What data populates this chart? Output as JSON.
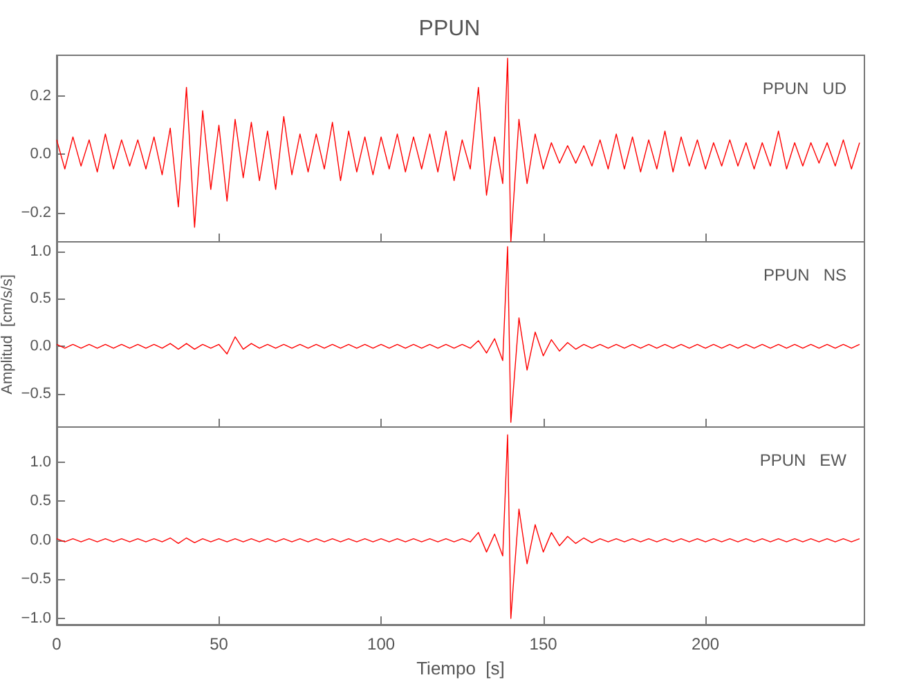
{
  "chart_data": [
    {
      "type": "line",
      "title": "PPUN",
      "annotations": [
        "PPUN   UD"
      ],
      "tick_labels": "y",
      "grid": false,
      "marker": "none",
      "x": [
        0,
        2.5,
        5,
        7.5,
        10,
        12.5,
        15,
        17.5,
        20,
        22.5,
        25,
        27.5,
        30,
        32.5,
        35,
        37.5,
        40,
        42.5,
        45,
        47.5,
        50,
        52.5,
        55,
        57.5,
        60,
        62.5,
        65,
        67.5,
        70,
        72.5,
        75,
        77.5,
        80,
        82.5,
        85,
        87.5,
        90,
        92.5,
        95,
        97.5,
        100,
        102.5,
        105,
        107.5,
        110,
        112.5,
        115,
        117.5,
        120,
        122.5,
        125,
        127.5,
        130,
        132.5,
        135,
        137.5,
        139,
        140,
        142.5,
        145,
        147.5,
        150,
        152.5,
        155,
        157.5,
        160,
        162.5,
        165,
        167.5,
        170,
        172.5,
        175,
        177.5,
        180,
        182.5,
        185,
        187.5,
        190,
        192.5,
        195,
        197.5,
        200,
        202.5,
        205,
        207.5,
        210,
        212.5,
        215,
        217.5,
        220,
        222.5,
        225,
        227.5,
        230,
        232.5,
        235,
        237.5,
        240,
        242.5,
        245,
        247.5
      ],
      "series": [
        {
          "color": "#ff0000",
          "values": [
            0.05,
            -0.05,
            0.06,
            -0.04,
            0.05,
            -0.06,
            0.07,
            -0.05,
            0.05,
            -0.04,
            0.05,
            -0.05,
            0.06,
            -0.07,
            0.09,
            -0.18,
            0.23,
            -0.25,
            0.15,
            -0.12,
            0.1,
            -0.16,
            0.12,
            -0.08,
            0.11,
            -0.09,
            0.08,
            -0.12,
            0.13,
            -0.07,
            0.07,
            -0.06,
            0.07,
            -0.05,
            0.11,
            -0.09,
            0.08,
            -0.06,
            0.06,
            -0.07,
            0.06,
            -0.05,
            0.07,
            -0.06,
            0.06,
            -0.05,
            0.07,
            -0.06,
            0.08,
            -0.09,
            0.05,
            -0.05,
            0.23,
            -0.14,
            0.06,
            -0.1,
            0.33,
            -0.3,
            0.12,
            -0.1,
            0.07,
            -0.05,
            0.04,
            -0.03,
            0.03,
            -0.03,
            0.03,
            -0.04,
            0.05,
            -0.05,
            0.07,
            -0.05,
            0.06,
            -0.06,
            0.05,
            -0.05,
            0.08,
            -0.06,
            0.06,
            -0.04,
            0.05,
            -0.05,
            0.04,
            -0.04,
            0.05,
            -0.04,
            0.04,
            -0.05,
            0.04,
            -0.04,
            0.08,
            -0.05,
            0.04,
            -0.04,
            0.04,
            -0.03,
            0.04,
            -0.04,
            0.05,
            -0.05,
            0.04
          ]
        }
      ],
      "xlim": [
        0,
        249
      ],
      "xticks": [
        0,
        50,
        100,
        150,
        200
      ],
      "ylim": [
        -0.3,
        0.34
      ],
      "yticks": [
        {
          "value": -0.2,
          "label": "−0.2"
        },
        {
          "value": 0,
          "label": "0.0"
        },
        {
          "value": 0.2,
          "label": "0.2"
        }
      ]
    },
    {
      "type": "line",
      "ylabel": "Amplitud  [cm/s/s]",
      "annotations": [
        "PPUN   NS"
      ],
      "tick_labels": "y",
      "grid": false,
      "marker": "none",
      "x": [
        0,
        2.5,
        5,
        7.5,
        10,
        12.5,
        15,
        17.5,
        20,
        22.5,
        25,
        27.5,
        30,
        32.5,
        35,
        37.5,
        40,
        42.5,
        45,
        47.5,
        50,
        52.5,
        55,
        57.5,
        60,
        62.5,
        65,
        67.5,
        70,
        72.5,
        75,
        77.5,
        80,
        82.5,
        85,
        87.5,
        90,
        92.5,
        95,
        97.5,
        100,
        102.5,
        105,
        107.5,
        110,
        112.5,
        115,
        117.5,
        120,
        122.5,
        125,
        127.5,
        130,
        132.5,
        135,
        137.5,
        139,
        140,
        142.5,
        145,
        147.5,
        150,
        152.5,
        155,
        157.5,
        160,
        162.5,
        165,
        167.5,
        170,
        172.5,
        175,
        177.5,
        180,
        182.5,
        185,
        187.5,
        190,
        192.5,
        195,
        197.5,
        200,
        202.5,
        205,
        207.5,
        210,
        212.5,
        215,
        217.5,
        220,
        222.5,
        225,
        227.5,
        230,
        232.5,
        235,
        237.5,
        240,
        242.5,
        245,
        247.5
      ],
      "series": [
        {
          "color": "#ff0000",
          "values": [
            0.02,
            -0.02,
            0.02,
            -0.02,
            0.02,
            -0.02,
            0.02,
            -0.02,
            0.02,
            -0.02,
            0.02,
            -0.02,
            0.02,
            -0.02,
            0.03,
            -0.03,
            0.03,
            -0.03,
            0.02,
            -0.02,
            0.02,
            -0.08,
            0.1,
            -0.03,
            0.03,
            -0.02,
            0.02,
            -0.02,
            0.02,
            -0.02,
            0.02,
            -0.02,
            0.02,
            -0.02,
            0.02,
            -0.02,
            0.02,
            -0.02,
            0.02,
            -0.02,
            0.02,
            -0.02,
            0.02,
            -0.02,
            0.02,
            -0.02,
            0.02,
            -0.02,
            0.02,
            -0.02,
            0.02,
            -0.02,
            0.06,
            -0.07,
            0.08,
            -0.15,
            1.05,
            -0.8,
            0.3,
            -0.25,
            0.15,
            -0.1,
            0.07,
            -0.05,
            0.04,
            -0.03,
            0.02,
            -0.02,
            0.02,
            -0.02,
            0.02,
            -0.02,
            0.02,
            -0.02,
            0.02,
            -0.02,
            0.02,
            -0.02,
            0.02,
            -0.02,
            0.02,
            -0.02,
            0.02,
            -0.02,
            0.02,
            -0.02,
            0.02,
            -0.02,
            0.02,
            -0.02,
            0.02,
            -0.02,
            0.02,
            -0.02,
            0.02,
            -0.02,
            0.02,
            -0.02,
            0.02,
            -0.02,
            0.02
          ]
        }
      ],
      "xlim": [
        0,
        249
      ],
      "xticks": [
        0,
        50,
        100,
        150,
        200
      ],
      "ylim": [
        -0.85,
        1.1
      ],
      "yticks": [
        {
          "value": -0.5,
          "label": "−0.5"
        },
        {
          "value": 0,
          "label": "0.0"
        },
        {
          "value": 0.5,
          "label": "0.5"
        },
        {
          "value": 1,
          "label": "1.0"
        }
      ]
    },
    {
      "type": "line",
      "xlabel": "Tiempo  [s]",
      "annotations": [
        "PPUN   EW"
      ],
      "grid": false,
      "marker": "none",
      "x": [
        0,
        2.5,
        5,
        7.5,
        10,
        12.5,
        15,
        17.5,
        20,
        22.5,
        25,
        27.5,
        30,
        32.5,
        35,
        37.5,
        40,
        42.5,
        45,
        47.5,
        50,
        52.5,
        55,
        57.5,
        60,
        62.5,
        65,
        67.5,
        70,
        72.5,
        75,
        77.5,
        80,
        82.5,
        85,
        87.5,
        90,
        92.5,
        95,
        97.5,
        100,
        102.5,
        105,
        107.5,
        110,
        112.5,
        115,
        117.5,
        120,
        122.5,
        125,
        127.5,
        130,
        132.5,
        135,
        137.5,
        139,
        140,
        142.5,
        145,
        147.5,
        150,
        152.5,
        155,
        157.5,
        160,
        162.5,
        165,
        167.5,
        170,
        172.5,
        175,
        177.5,
        180,
        182.5,
        185,
        187.5,
        190,
        192.5,
        195,
        197.5,
        200,
        202.5,
        205,
        207.5,
        210,
        212.5,
        215,
        217.5,
        220,
        222.5,
        225,
        227.5,
        230,
        232.5,
        235,
        237.5,
        240,
        242.5,
        245,
        247.5
      ],
      "series": [
        {
          "color": "#ff0000",
          "values": [
            0.02,
            -0.02,
            0.02,
            -0.02,
            0.02,
            -0.02,
            0.02,
            -0.02,
            0.02,
            -0.02,
            0.02,
            -0.02,
            0.02,
            -0.02,
            0.03,
            -0.04,
            0.03,
            -0.03,
            0.02,
            -0.02,
            0.02,
            -0.02,
            0.02,
            -0.02,
            0.02,
            -0.02,
            0.02,
            -0.02,
            0.02,
            -0.02,
            0.02,
            -0.02,
            0.02,
            -0.02,
            0.02,
            -0.02,
            0.02,
            -0.02,
            0.02,
            -0.02,
            0.02,
            -0.02,
            0.02,
            -0.02,
            0.02,
            -0.02,
            0.02,
            -0.02,
            0.02,
            -0.02,
            0.02,
            -0.02,
            0.1,
            -0.15,
            0.08,
            -0.2,
            1.35,
            -1.0,
            0.4,
            -0.3,
            0.2,
            -0.15,
            0.1,
            -0.07,
            0.05,
            -0.04,
            0.03,
            -0.03,
            0.02,
            -0.02,
            0.02,
            -0.02,
            0.02,
            -0.02,
            0.02,
            -0.02,
            0.02,
            -0.02,
            0.02,
            -0.02,
            0.02,
            -0.02,
            0.02,
            -0.02,
            0.02,
            -0.02,
            0.02,
            -0.02,
            0.02,
            -0.02,
            0.02,
            -0.02,
            0.02,
            -0.02,
            0.02,
            -0.02,
            0.02,
            -0.02,
            0.02,
            -0.02,
            0.02
          ]
        }
      ],
      "xlim": [
        0,
        249
      ],
      "xticks": [
        0,
        50,
        100,
        150,
        200
      ],
      "ylim": [
        -1.08,
        1.45
      ],
      "yticks": [
        {
          "value": -1,
          "label": "−1.0"
        },
        {
          "value": -0.5,
          "label": "−0.5"
        },
        {
          "value": 0,
          "label": "0.0"
        },
        {
          "value": 0.5,
          "label": "0.5"
        },
        {
          "value": 1,
          "label": "1.0"
        }
      ]
    }
  ]
}
